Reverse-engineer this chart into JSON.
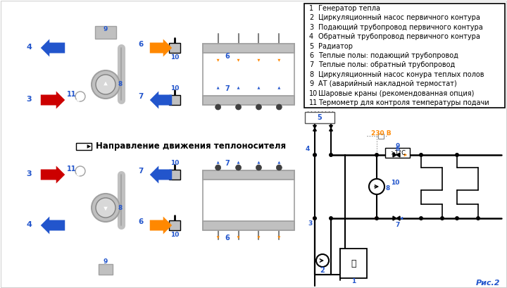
{
  "legend_items": [
    [
      "1",
      "Генератор тепла"
    ],
    [
      "2",
      "Циркуляционный насос первичного контура"
    ],
    [
      "3",
      "Подающий трубопровод первичного контура"
    ],
    [
      "4",
      "Обратный трубопровод первичного контура"
    ],
    [
      "5",
      "Радиатор"
    ],
    [
      "6",
      "Теплые полы: подающий трубопровод"
    ],
    [
      "7",
      "Теплые полы: обратный трубопровод"
    ],
    [
      "8",
      "Циркуляционный насос конура теплых полов"
    ],
    [
      "9",
      "АТ (аварийный накладной термостат)"
    ],
    [
      "10",
      "Шаровые краны (рекомендованная опция)"
    ],
    [
      "11",
      "Термометр для контроля температуры подачи"
    ]
  ],
  "direction_label": "Направление движения теплоносителя",
  "fig2_label": "Рис.2",
  "voltage_label": "230 В",
  "colors": {
    "red": "#cc0000",
    "blue": "#2255cc",
    "orange": "#ff8800",
    "black": "#000000",
    "white": "#ffffff",
    "gray1": "#c0c0c0",
    "gray2": "#a0a0a0",
    "gray3": "#808080",
    "bg": "#ffffff"
  }
}
